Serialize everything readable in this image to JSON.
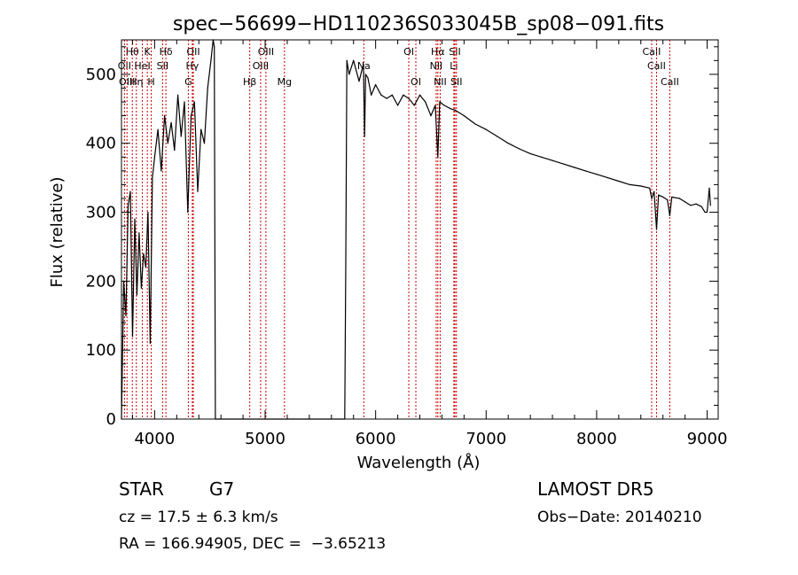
{
  "chart_data": {
    "type": "line",
    "title": "spec−56699−HD110236S033045B_sp08−091.fits",
    "xlabel": "Wavelength (Å)",
    "ylabel": "Flux (relative)",
    "xlim": [
      3700,
      9100
    ],
    "ylim": [
      0,
      550
    ],
    "x_ticks": [
      4000,
      5000,
      6000,
      7000,
      8000,
      9000
    ],
    "y_ticks": [
      0,
      100,
      200,
      300,
      400,
      500
    ],
    "grid": false,
    "line_color": "#000000",
    "marker_line_color": "#cc0000",
    "series": [
      {
        "values_note_free": true,
        "x": [
          3700,
          3720,
          3740,
          3760,
          3780,
          3800,
          3820,
          3840,
          3860,
          3880,
          3900,
          3920,
          3940,
          3960,
          3980,
          4000,
          4030,
          4060,
          4090,
          4120,
          4150,
          4180,
          4210,
          4240,
          4270,
          4300,
          4330,
          4360,
          4390,
          4420,
          4450,
          4480,
          4510,
          4530,
          4540,
          4550,
          5720,
          5730,
          5740,
          5760,
          5800,
          5850,
          5890,
          5900,
          5910,
          5930,
          5960,
          6000,
          6050,
          6100,
          6150,
          6200,
          6250,
          6300,
          6350,
          6400,
          6450,
          6500,
          6540,
          6563,
          6580,
          6620,
          6680,
          6720,
          6800,
          6900,
          7000,
          7100,
          7200,
          7300,
          7400,
          7500,
          7600,
          7700,
          7800,
          7900,
          8000,
          8100,
          8200,
          8300,
          8400,
          8480,
          8498,
          8520,
          8542,
          8560,
          8600,
          8640,
          8662,
          8680,
          8750,
          8800,
          8850,
          8900,
          8950,
          8980,
          9000,
          9020,
          9030
        ],
        "y": [
          0,
          200,
          150,
          310,
          330,
          120,
          290,
          180,
          270,
          190,
          240,
          220,
          300,
          110,
          350,
          380,
          420,
          360,
          440,
          400,
          430,
          390,
          470,
          410,
          460,
          300,
          440,
          460,
          330,
          420,
          400,
          480,
          520,
          550,
          540,
          0,
          0,
          230,
          520,
          500,
          520,
          490,
          515,
          410,
          500,
          495,
          470,
          485,
          470,
          465,
          470,
          455,
          470,
          465,
          455,
          470,
          460,
          440,
          455,
          380,
          460,
          455,
          450,
          448,
          440,
          428,
          420,
          410,
          400,
          392,
          385,
          380,
          375,
          370,
          365,
          360,
          355,
          350,
          345,
          340,
          338,
          335,
          320,
          330,
          275,
          325,
          322,
          318,
          295,
          322,
          320,
          315,
          310,
          312,
          308,
          300,
          300,
          335,
          310
        ]
      }
    ],
    "line_markers": [
      {
        "label": "Hθ",
        "x": 3798,
        "row": 1
      },
      {
        "label": "K",
        "x": 3934,
        "row": 1
      },
      {
        "label": "Hδ",
        "x": 4102,
        "row": 1
      },
      {
        "label": "OII",
        "x": 4350,
        "row": 1
      },
      {
        "label": "OIII",
        "x": 5007,
        "row": 1
      },
      {
        "label": "OI",
        "x": 6300,
        "row": 1
      },
      {
        "label": "Hα",
        "x": 6563,
        "row": 1
      },
      {
        "label": "SII",
        "x": 6717,
        "row": 1
      },
      {
        "label": "CaII",
        "x": 8498,
        "row": 1
      },
      {
        "label": "OII",
        "x": 3727,
        "row": 2
      },
      {
        "label": "HeI",
        "x": 3889,
        "row": 2
      },
      {
        "label": "SII",
        "x": 4072,
        "row": 2
      },
      {
        "label": "Hγ",
        "x": 4341,
        "row": 2
      },
      {
        "label": "OIII",
        "x": 4959,
        "row": 2
      },
      {
        "label": "Na",
        "x": 5893,
        "row": 2
      },
      {
        "label": "NII",
        "x": 6548,
        "row": 2
      },
      {
        "label": "Li",
        "x": 6708,
        "row": 2
      },
      {
        "label": "CaII",
        "x": 8542,
        "row": 2
      },
      {
        "label": "OIII",
        "x": 3750,
        "row": 3
      },
      {
        "label": "Hη",
        "x": 3835,
        "row": 3
      },
      {
        "label": "H",
        "x": 3969,
        "row": 3
      },
      {
        "label": "G",
        "x": 4305,
        "row": 3
      },
      {
        "label": "Hβ",
        "x": 4861,
        "row": 3
      },
      {
        "label": "Mg",
        "x": 5175,
        "row": 3
      },
      {
        "label": "OI",
        "x": 6364,
        "row": 3
      },
      {
        "label": "NII",
        "x": 6584,
        "row": 3
      },
      {
        "label": "SII",
        "x": 6731,
        "row": 3
      },
      {
        "label": "CaII",
        "x": 8662,
        "row": 3
      }
    ]
  },
  "footer": {
    "object_class": "STAR",
    "subclass": "G7",
    "cz": "cz = 17.5 ± 6.3 km/s",
    "coords": "RA = 166.94905, DEC =  −3.65213",
    "survey": "LAMOST DR5",
    "obs_date": "Obs−Date: 20140210"
  }
}
